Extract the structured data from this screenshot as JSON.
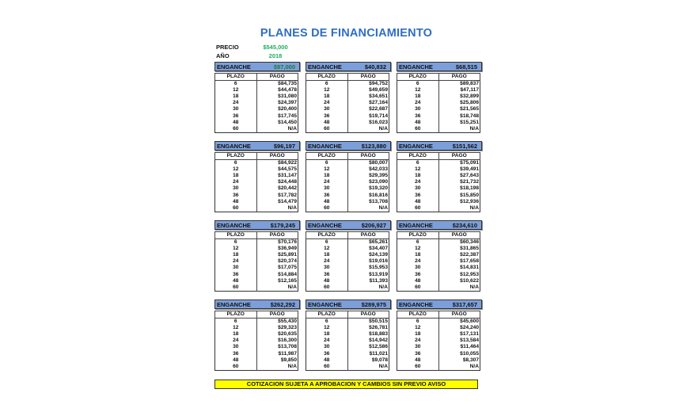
{
  "title": "PLANES DE FINANCIAMIENTO",
  "precio_label": "PRECIO",
  "precio_value": "$545,000",
  "anio_label": "AÑO",
  "anio_value": "2018",
  "enganche_label": "ENGANCHE",
  "col_plazo": "PLAZO",
  "col_pago": "PAGO",
  "plazos": [
    "6",
    "12",
    "18",
    "24",
    "30",
    "36",
    "48",
    "60"
  ],
  "plans": [
    {
      "enganche": "$97,000",
      "highlight": true,
      "pagos": [
        "$84,735",
        "$44,478",
        "$31,080",
        "$24,397",
        "$20,400",
        "$17,745",
        "$14,450",
        "N/A"
      ]
    },
    {
      "enganche": "$40,832",
      "pagos": [
        "$94,752",
        "$49,659",
        "$34,651",
        "$27,164",
        "$22,687",
        "$19,714",
        "$16,023",
        "N/A"
      ]
    },
    {
      "enganche": "$68,515",
      "pagos": [
        "$89,837",
        "$47,117",
        "$32,899",
        "$25,806",
        "$21,565",
        "$18,748",
        "$15,251",
        "N/A"
      ]
    },
    {
      "enganche": "$96,197",
      "pagos": [
        "$84,922",
        "$44,575",
        "$31,147",
        "$24,448",
        "$20,442",
        "$17,782",
        "$14,479",
        "N/A"
      ]
    },
    {
      "enganche": "$123,880",
      "pagos": [
        "$80,007",
        "$42,033",
        "$29,395",
        "$23,090",
        "$19,320",
        "$16,816",
        "$13,708",
        "N/A"
      ]
    },
    {
      "enganche": "$151,562",
      "pagos": [
        "$75,091",
        "$39,491",
        "$27,643",
        "$21,732",
        "$18,198",
        "$15,850",
        "$12,936",
        "N/A"
      ]
    },
    {
      "enganche": "$179,245",
      "pagos": [
        "$70,176",
        "$36,949",
        "$25,891",
        "$20,374",
        "$17,075",
        "$14,884",
        "$12,165",
        "N/A"
      ]
    },
    {
      "enganche": "$206,927",
      "pagos": [
        "$65,261",
        "$34,407",
        "$24,139",
        "$19,016",
        "$15,953",
        "$13,919",
        "$11,393",
        "N/A"
      ]
    },
    {
      "enganche": "$234,610",
      "pagos": [
        "$60,346",
        "$31,865",
        "$22,387",
        "$17,658",
        "$14,831",
        "$12,953",
        "$10,622",
        "N/A"
      ]
    },
    {
      "enganche": "$262,292",
      "pagos": [
        "$55,430",
        "$29,323",
        "$20,635",
        "$16,300",
        "$13,708",
        "$11,987",
        "$9,850",
        "N/A"
      ]
    },
    {
      "enganche": "$289,975",
      "pagos": [
        "$50,515",
        "$26,781",
        "$18,883",
        "$14,942",
        "$12,586",
        "$11,021",
        "$9,078",
        "N/A"
      ]
    },
    {
      "enganche": "$317,657",
      "pagos": [
        "$45,600",
        "$24,240",
        "$17,131",
        "$13,584",
        "$11,464",
        "$10,055",
        "$8,307",
        "N/A"
      ]
    }
  ],
  "footer": "COTIZACION SUJETA A APROBACION Y CAMBIOS SIN PREVIO AVISO",
  "colors": {
    "title": "#2f6ec4",
    "header_bg": "#7d9fd9",
    "green": "#1fae5a",
    "footer_bg": "#ffff00"
  }
}
